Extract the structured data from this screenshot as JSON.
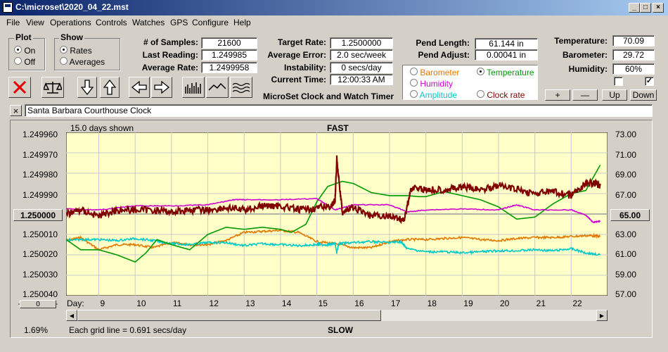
{
  "window": {
    "title": "C:\\microset\\2020_04_22.mst"
  },
  "menu": [
    "File",
    "View",
    "Operations",
    "Controls",
    "Watches",
    "GPS",
    "Configure",
    "Help"
  ],
  "plot_group": {
    "title": "Plot",
    "options": [
      "On",
      "Off"
    ],
    "selected": "On"
  },
  "show_group": {
    "title": "Show",
    "options": [
      "Rates",
      "Averages"
    ],
    "selected": "Rates"
  },
  "stats": {
    "samples_label": "# of Samples:",
    "samples": "21600",
    "last_label": "Last Reading:",
    "last": "1.249985",
    "avg_label": "Average Rate:",
    "avg": "1.2499958",
    "target_label": "Target Rate:",
    "target": "1.2500000",
    "error_label": "Average Error:",
    "error": "2.0 sec/week",
    "instab_label": "Instability:",
    "instab": "0 secs/day",
    "time_label": "Current Time:",
    "time": "12:00:33 AM",
    "app_name": "MicroSet Clock and Watch Timer",
    "pend_len_label": "Pend Length:",
    "pend_len": "61.144 in",
    "pend_adj_label": "Pend Adjust:",
    "pend_adj": "0.00041 in",
    "temp_label": "Temperature:",
    "temp": "70.09",
    "baro_label": "Barometer:",
    "baro": "29.72",
    "hum_label": "Humidity:",
    "hum": "60%"
  },
  "sensor_select": {
    "options": [
      {
        "label": "Barometer",
        "color": "#e07800"
      },
      {
        "label": "Temperature",
        "color": "#009a00"
      },
      {
        "label": "Humidity",
        "color": "#d000d0"
      },
      {
        "label": "Clock rate",
        "color": "#800000"
      },
      {
        "label": "Amplitude",
        "color": "#00c8c8"
      }
    ],
    "selected": "Temperature"
  },
  "buttons": {
    "plus": "+",
    "minus": "—",
    "up": "Up",
    "down": "Down"
  },
  "toolbar_icons": [
    "cancel-icon",
    "scale-icon",
    "arrow-down-icon",
    "arrow-up-icon",
    "arrow-left-icon",
    "arrow-right-icon",
    "bar-graph-icon",
    "line-graph-icon",
    "wave-icon"
  ],
  "clock_name": "Santa Barbara Courthouse Clock",
  "graph": {
    "days_shown": "15.0 days shown",
    "fast": "FAST",
    "slow": "SLOW",
    "grid_note": "Each grid line = 0.691 secs/day",
    "day_label": "Day:",
    "left_ticks": [
      "1.249960",
      "1.249970",
      "1.249980",
      "1.249990",
      "1.250000",
      "1.250010",
      "1.250020",
      "1.250030",
      "1.250040"
    ],
    "left_center": "1.250000",
    "right_ticks": [
      "73.00",
      "71.00",
      "69.00",
      "67.00",
      "65.00",
      "63.00",
      "61.00",
      "59.00",
      "57.00"
    ],
    "right_center": "65.00",
    "days": [
      "9",
      "10",
      "11",
      "12",
      "13",
      "14",
      "15",
      "16",
      "17",
      "18",
      "19",
      "20",
      "21",
      "22"
    ],
    "zoom": "1.69%",
    "slider_label": "0"
  },
  "chart_data": {
    "type": "line",
    "x_range": [
      8.1,
      23.0
    ],
    "left_axis_range": [
      1.24996,
      1.25004
    ],
    "right_axis_range": [
      57.0,
      73.0
    ],
    "series": [
      {
        "name": "Clock rate",
        "axis": "left",
        "color": "#800000",
        "x": [
          8.1,
          8.5,
          9.0,
          9.5,
          10.0,
          10.5,
          11.0,
          11.5,
          12.0,
          12.5,
          13.0,
          13.5,
          14.0,
          14.5,
          15.0,
          15.4,
          15.5,
          15.55,
          15.7,
          16.0,
          16.5,
          17.0,
          17.4,
          17.6,
          18.0,
          18.5,
          19.0,
          19.5,
          20.0,
          20.5,
          21.0,
          21.5,
          22.0,
          22.4,
          22.6,
          22.8
        ],
        "y": [
          1.25,
          1.249998,
          1.250001,
          1.249998,
          1.249998,
          1.249998,
          1.249999,
          1.249998,
          1.249998,
          1.249997,
          1.249998,
          1.249996,
          1.249996,
          1.249998,
          1.249997,
          1.249996,
          1.249994,
          1.249973,
          1.249999,
          1.249997,
          1.250001,
          1.250001,
          1.250003,
          1.249987,
          1.249988,
          1.249988,
          1.249987,
          1.249988,
          1.249986,
          1.249988,
          1.24999,
          1.249989,
          1.249991,
          1.249985,
          1.249985,
          1.249986
        ]
      },
      {
        "name": "Humidity",
        "axis": "right",
        "color": "#d000d0",
        "x": [
          8.1,
          9.0,
          10.0,
          11.0,
          12.0,
          12.7,
          13.0,
          14.0,
          15.0,
          15.5,
          16.0,
          17.0,
          17.5,
          18.0,
          19.0,
          20.0,
          20.5,
          21.0,
          22.0,
          22.4,
          22.6,
          22.8
        ],
        "y": [
          65.5,
          65.4,
          65.8,
          65.8,
          65.9,
          66.4,
          66.4,
          66.4,
          66.5,
          65.4,
          65.9,
          65.9,
          65.2,
          65.4,
          65.5,
          65.4,
          65.9,
          65.4,
          65.4,
          64.9,
          64.2,
          64.3
        ]
      },
      {
        "name": "Temperature",
        "axis": "right",
        "color": "#009a00",
        "x": [
          8.1,
          8.5,
          9.0,
          9.5,
          10.0,
          10.3,
          10.6,
          11.0,
          11.5,
          12.0,
          12.5,
          13.0,
          13.5,
          14.0,
          14.3,
          14.7,
          15.0,
          15.3,
          15.7,
          16.0,
          16.5,
          17.0,
          17.5,
          17.8,
          18.0,
          18.5,
          19.0,
          19.5,
          20.0,
          20.5,
          21.0,
          21.5,
          22.0,
          22.4,
          22.8
        ],
        "y": [
          62.5,
          61.5,
          61.5,
          61.0,
          60.3,
          61.2,
          62.5,
          62.0,
          61.5,
          63.0,
          63.7,
          63.5,
          63.7,
          63.5,
          63.2,
          64.0,
          66.2,
          67.7,
          68.2,
          68.0,
          67.1,
          66.8,
          66.8,
          66.7,
          66.7,
          67.2,
          66.8,
          66.4,
          65.7,
          64.5,
          64.7,
          66.0,
          67.0,
          67.3,
          69.8
        ]
      },
      {
        "name": "Barometer",
        "axis": "right",
        "color": "#e07800",
        "x": [
          8.1,
          8.5,
          9.0,
          9.5,
          10.0,
          10.5,
          11.0,
          11.5,
          12.0,
          12.5,
          13.0,
          13.5,
          14.0,
          14.5,
          15.0,
          15.5,
          16.0,
          16.5,
          17.0,
          17.5,
          18.0,
          18.5,
          19.0,
          19.5,
          20.0,
          20.5,
          21.0,
          21.5,
          22.0,
          22.5,
          22.8
        ],
        "y": [
          62.4,
          62.7,
          61.5,
          62.0,
          62.0,
          61.7,
          62.2,
          62.0,
          62.0,
          62.4,
          63.2,
          63.3,
          63.4,
          63.2,
          62.3,
          62.1,
          61.7,
          61.7,
          62.3,
          62.5,
          62.5,
          62.6,
          62.7,
          62.5,
          62.4,
          62.6,
          62.7,
          62.7,
          62.8,
          62.9,
          62.8
        ]
      },
      {
        "name": "Amplitude",
        "axis": "right",
        "color": "#00c8c8",
        "x": [
          8.1,
          8.5,
          9.0,
          9.5,
          10.0,
          10.5,
          11.0,
          11.5,
          12.0,
          12.5,
          13.0,
          13.5,
          14.0,
          14.5,
          15.0,
          15.3,
          15.5,
          15.55,
          15.6,
          16.0,
          16.5,
          17.0,
          17.3,
          17.5,
          18.0,
          18.5,
          19.0,
          19.5,
          20.0,
          20.5,
          21.0,
          21.5,
          22.0,
          22.4,
          22.8
        ],
        "y": [
          62.4,
          62.5,
          62.5,
          62.4,
          62.6,
          62.4,
          62.1,
          62.0,
          62.2,
          62.2,
          61.9,
          62.1,
          62.0,
          61.9,
          62.0,
          62.0,
          62.1,
          61.2,
          62.1,
          62.2,
          62.3,
          62.2,
          62.3,
          61.6,
          61.3,
          61.3,
          61.2,
          61.3,
          61.4,
          61.4,
          61.5,
          61.4,
          61.6,
          61.2,
          61.0
        ]
      }
    ]
  }
}
